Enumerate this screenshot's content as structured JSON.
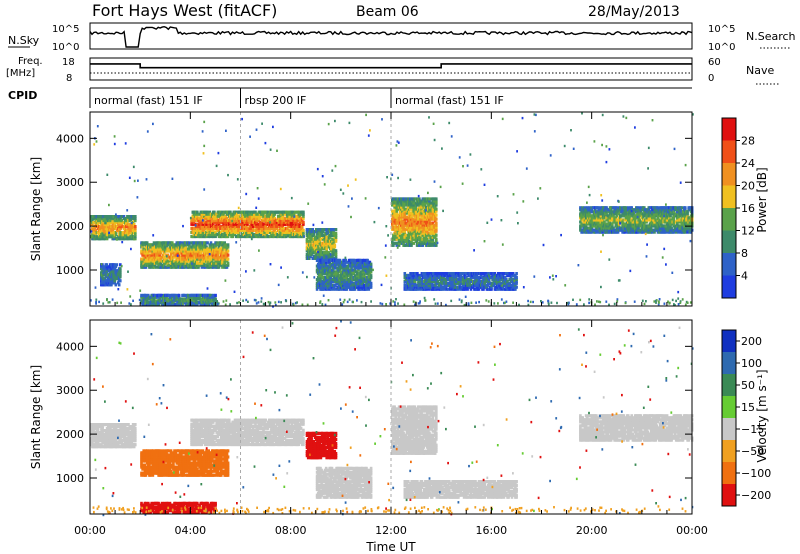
{
  "header": {
    "station": "Fort Hays West (fitACF)",
    "beam": "Beam 06",
    "date": "28/May/2013"
  },
  "top_panels": {
    "nsky_label": "N.Sky",
    "nsky_ticks": [
      "10^5",
      "10^0"
    ],
    "nsearch_label": "N.Search",
    "nsearch_ticks": [
      "10^5",
      "10^0"
    ],
    "freq_label": "Freq.",
    "freq_unit": "[MHz]",
    "freq_ticks": [
      "18",
      "8"
    ],
    "nave_label": "Nave",
    "nave_ticks": [
      "60",
      "0"
    ],
    "cpid_label": "CPID",
    "cpid_segments": [
      {
        "label": "normal (fast) 151 IF",
        "start": 0,
        "end": 6
      },
      {
        "label": "rbsp 200 IF",
        "start": 6,
        "end": 12
      },
      {
        "label": "normal (fast) 151 IF",
        "start": 12,
        "end": 24
      }
    ]
  },
  "chart_data": [
    {
      "type": "heatmap",
      "panel": "power",
      "ylabel": "Slant Range [km]",
      "ylim": [
        180,
        4600
      ],
      "y_ticks": [
        "1000",
        "2000",
        "3000",
        "4000"
      ],
      "xlim": [
        0,
        24
      ],
      "colorbar": {
        "label": "Power [dB]",
        "ticks": [
          "4",
          "8",
          "12",
          "16",
          "20",
          "24",
          "28"
        ],
        "range": [
          0,
          30
        ],
        "colors": [
          "#1f3de0",
          "#2e62c8",
          "#3d8a6a",
          "#5aa24a",
          "#f0c020",
          "#f09020",
          "#f05018",
          "#e01010"
        ]
      },
      "echo_bands": [
        {
          "t0": 0.0,
          "t1": 1.8,
          "r0": 1750,
          "r1": 2300,
          "level": 20
        },
        {
          "t0": 0.4,
          "t1": 1.2,
          "r0": 700,
          "r1": 1200,
          "level": 8
        },
        {
          "t0": 2.0,
          "t1": 5.5,
          "r0": 1100,
          "r1": 1700,
          "level": 20
        },
        {
          "t0": 4.0,
          "t1": 8.5,
          "r0": 1800,
          "r1": 2400,
          "level": 24
        },
        {
          "t0": 2.0,
          "t1": 5.0,
          "r0": 250,
          "r1": 500,
          "level": 12
        },
        {
          "t0": 8.6,
          "t1": 9.8,
          "r0": 1300,
          "r1": 2000,
          "level": 16
        },
        {
          "t0": 9.0,
          "t1": 11.2,
          "r0": 600,
          "r1": 1300,
          "level": 10
        },
        {
          "t0": 12.0,
          "t1": 13.8,
          "r0": 1600,
          "r1": 2700,
          "level": 20
        },
        {
          "t0": 12.5,
          "t1": 17.0,
          "r0": 600,
          "r1": 1000,
          "level": 8
        },
        {
          "t0": 19.5,
          "t1": 24.0,
          "r0": 1900,
          "r1": 2500,
          "level": 14
        }
      ]
    },
    {
      "type": "heatmap",
      "panel": "velocity",
      "ylabel": "Slant Range [km]",
      "xlabel": "Time UT",
      "ylim": [
        180,
        4600
      ],
      "y_ticks": [
        "1000",
        "2000",
        "3000",
        "4000"
      ],
      "xlim": [
        0,
        24
      ],
      "x_ticks": [
        "00:00",
        "04:00",
        "08:00",
        "12:00",
        "16:00",
        "20:00",
        "00:00"
      ],
      "colorbar": {
        "label": "Velocity [m s⁻¹]",
        "ticks": [
          "200",
          "100",
          "50",
          "15",
          "−15",
          "−50",
          "−100",
          "−200"
        ],
        "colors": [
          "#1030c0",
          "#2e6ab0",
          "#3a8a55",
          "#66cc33",
          "#c8c8c8",
          "#f0a020",
          "#f07010",
          "#e01010"
        ]
      },
      "echo_bands": [
        {
          "t0": 0.0,
          "t1": 1.8,
          "r0": 1750,
          "r1": 2300,
          "vel": 0
        },
        {
          "t0": 2.0,
          "t1": 5.5,
          "r0": 1100,
          "r1": 1700,
          "vel": -70
        },
        {
          "t0": 4.0,
          "t1": 8.5,
          "r0": 1800,
          "r1": 2400,
          "vel": 0
        },
        {
          "t0": 2.0,
          "t1": 5.0,
          "r0": 250,
          "r1": 500,
          "vel": -200
        },
        {
          "t0": 8.6,
          "t1": 9.8,
          "r0": 1500,
          "r1": 2100,
          "vel": -220
        },
        {
          "t0": 9.0,
          "t1": 11.2,
          "r0": 600,
          "r1": 1300,
          "vel": 0
        },
        {
          "t0": 12.0,
          "t1": 13.8,
          "r0": 1600,
          "r1": 2700,
          "vel": 0
        },
        {
          "t0": 12.5,
          "t1": 17.0,
          "r0": 600,
          "r1": 1000,
          "vel": 0
        },
        {
          "t0": 19.5,
          "t1": 24.0,
          "r0": 1900,
          "r1": 2500,
          "vel": 0
        }
      ]
    }
  ]
}
